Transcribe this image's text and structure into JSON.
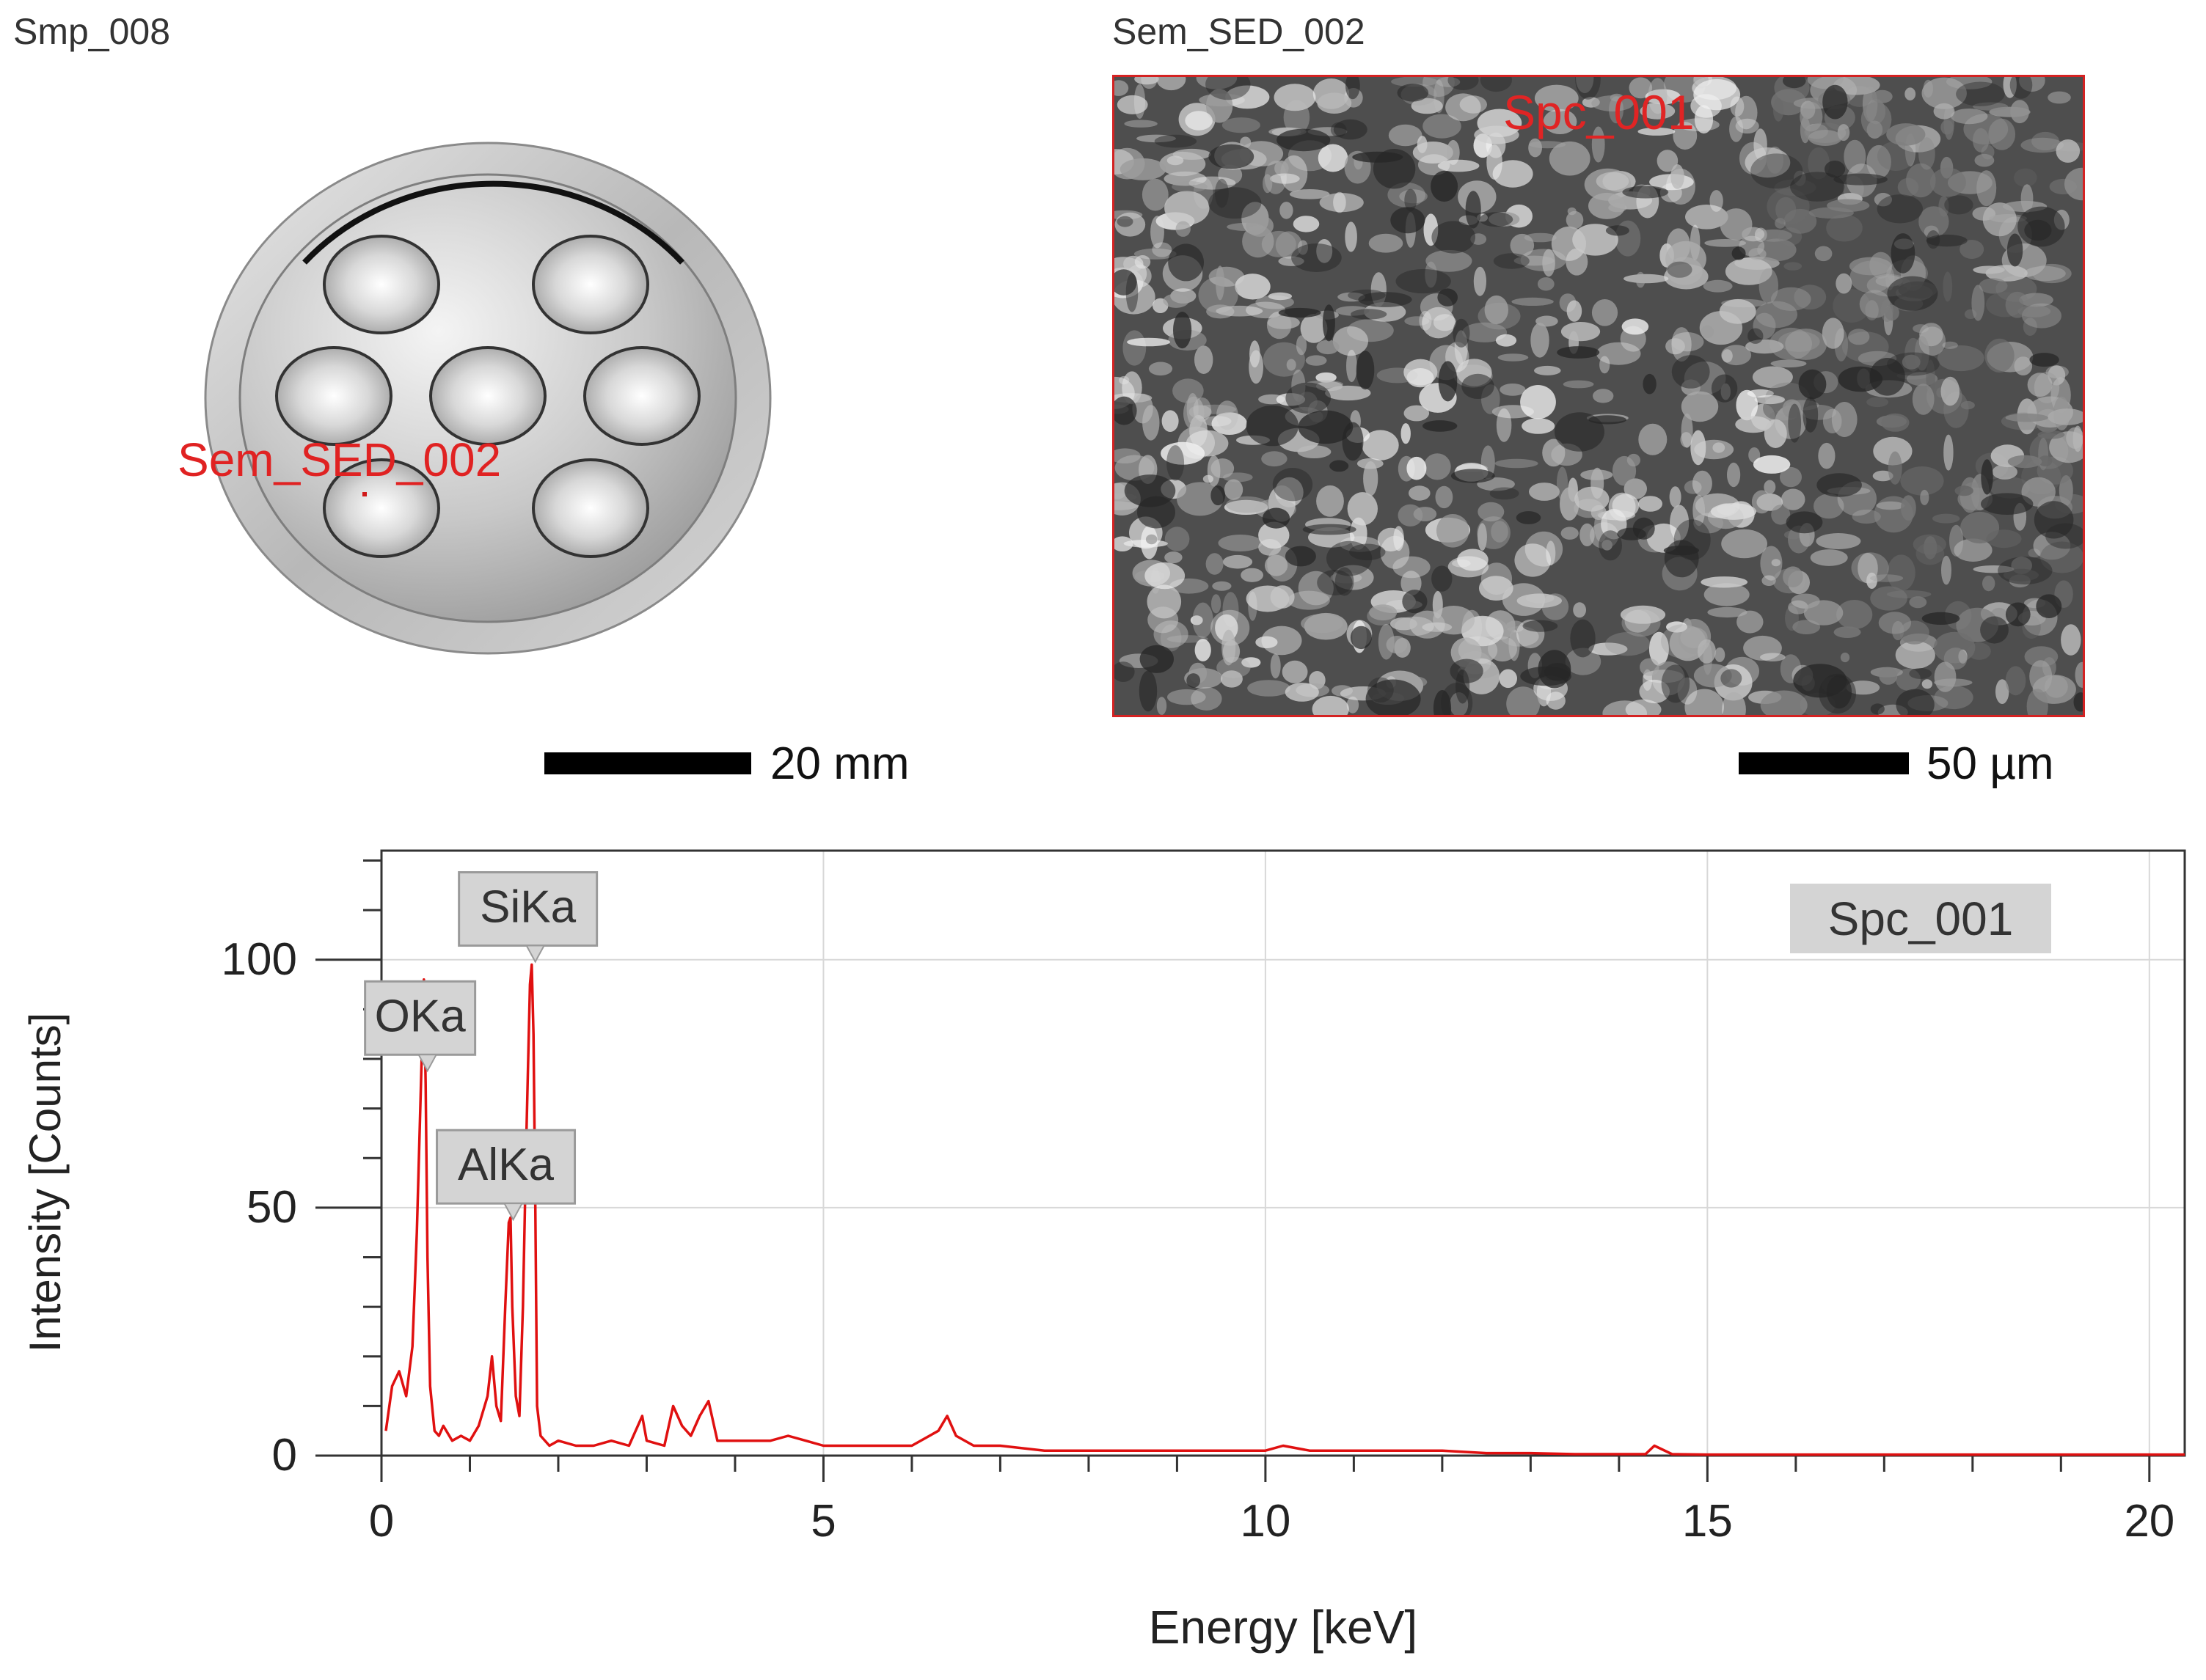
{
  "sample_panel": {
    "title": "Smp_008",
    "marker_label": "Sem_SED_002",
    "scale_bar_label": "20 mm"
  },
  "sem_panel": {
    "title": "Sem_SED_002",
    "marker_label": "Spc_001",
    "scale_bar_label": "50 µm"
  },
  "colors": {
    "spectrum_line": "#e01010",
    "marker_text": "#e02222",
    "label_box": "#d4d4d4",
    "grid": "#d8d8d8"
  },
  "chart_data": {
    "type": "line",
    "xlabel": "Energy [keV]",
    "ylabel": "Intensity [Counts]",
    "xlim": [
      0,
      20.4
    ],
    "ylim": [
      0,
      122
    ],
    "xticks": [
      0,
      5,
      10,
      15,
      20
    ],
    "yticks": [
      0,
      50,
      100
    ],
    "grid": true,
    "legend": "top-right",
    "series": [
      {
        "name": "Spc_001",
        "x": [
          0.05,
          0.12,
          0.2,
          0.28,
          0.35,
          0.4,
          0.45,
          0.48,
          0.5,
          0.52,
          0.55,
          0.6,
          0.65,
          0.7,
          0.8,
          0.9,
          1.0,
          1.1,
          1.2,
          1.25,
          1.3,
          1.35,
          1.4,
          1.44,
          1.46,
          1.48,
          1.52,
          1.56,
          1.6,
          1.64,
          1.68,
          1.7,
          1.72,
          1.74,
          1.76,
          1.8,
          1.9,
          2.0,
          2.2,
          2.4,
          2.6,
          2.8,
          2.95,
          3.0,
          3.2,
          3.3,
          3.4,
          3.5,
          3.6,
          3.7,
          3.8,
          4.0,
          4.2,
          4.4,
          4.6,
          4.8,
          5.0,
          5.5,
          6.0,
          6.3,
          6.4,
          6.5,
          6.7,
          7.0,
          7.5,
          8.0,
          8.5,
          9.0,
          9.5,
          10.0,
          10.2,
          10.5,
          11.0,
          11.5,
          12.0,
          12.5,
          13.0,
          13.5,
          14.0,
          14.3,
          14.4,
          14.6,
          15.0,
          16.0,
          17.0,
          18.0,
          19.0,
          20.0,
          20.4
        ],
        "y": [
          5,
          14,
          17,
          12,
          22,
          45,
          77,
          96,
          75,
          40,
          14,
          5,
          4,
          6,
          3,
          4,
          3,
          6,
          12,
          20,
          10,
          7,
          30,
          47,
          48,
          30,
          12,
          8,
          30,
          65,
          95,
          99,
          85,
          50,
          10,
          4,
          2,
          3,
          2,
          2,
          3,
          2,
          8,
          3,
          2,
          10,
          6,
          4,
          8,
          11,
          3,
          3,
          3,
          3,
          4,
          3,
          2,
          2,
          2,
          5,
          8,
          4,
          2,
          2,
          1,
          1,
          1,
          1,
          1,
          1,
          2,
          1,
          1,
          1,
          1,
          0.5,
          0.5,
          0.3,
          0.3,
          0.3,
          2,
          0.3,
          0.2,
          0.2,
          0.2,
          0.2,
          0.2,
          0.2,
          0.2
        ]
      }
    ],
    "annotations": [
      {
        "label": "SiKa",
        "x": 1.74,
        "y": 99
      },
      {
        "label": "OKa",
        "x": 0.52,
        "y": 77
      },
      {
        "label": "AlKa",
        "x": 1.49,
        "y": 47
      }
    ]
  }
}
